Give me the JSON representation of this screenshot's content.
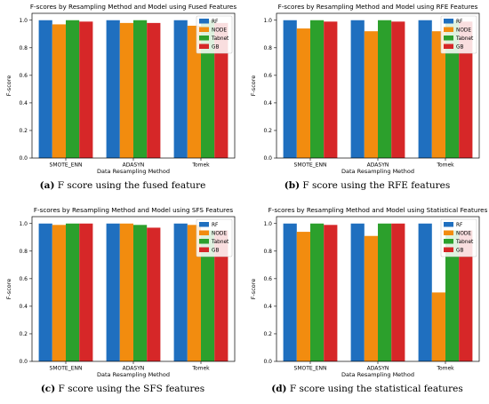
{
  "colors": {
    "RF": "#1f6fbf",
    "NODE": "#f28c0f",
    "Tabnet": "#2ca02c",
    "GB": "#d62728"
  },
  "chart_data": [
    {
      "type": "bar",
      "title": "F-scores by Resampling Method and Model using Fused Features",
      "xlabel": "Data Resampling Method",
      "ylabel": "F-score",
      "categories": [
        "SMOTE_ENN",
        "ADASYN",
        "Tomek"
      ],
      "series": [
        {
          "name": "RF",
          "values": [
            1.0,
            1.0,
            1.0
          ]
        },
        {
          "name": "NODE",
          "values": [
            0.97,
            0.98,
            0.96
          ]
        },
        {
          "name": "Tabnet",
          "values": [
            1.0,
            1.0,
            1.0
          ]
        },
        {
          "name": "GB",
          "values": [
            0.99,
            0.98,
            0.98
          ]
        }
      ],
      "ylim": [
        0,
        1.05
      ],
      "yticks": [
        "0.0",
        "0.2",
        "0.4",
        "0.6",
        "0.8",
        "1.0"
      ],
      "legend": "top-right",
      "caption_label": "(a)",
      "caption_text": "F score using the fused feature"
    },
    {
      "type": "bar",
      "title": "F-scores by Resampling Method and Model using RFE Features",
      "xlabel": "Data Resampling Method",
      "ylabel": "F-score",
      "categories": [
        "SMOTE_ENN",
        "ADASYN",
        "Tomek"
      ],
      "series": [
        {
          "name": "RF",
          "values": [
            1.0,
            1.0,
            1.0
          ]
        },
        {
          "name": "NODE",
          "values": [
            0.94,
            0.92,
            0.92
          ]
        },
        {
          "name": "Tabnet",
          "values": [
            1.0,
            1.0,
            1.0
          ]
        },
        {
          "name": "GB",
          "values": [
            0.99,
            0.99,
            0.99
          ]
        }
      ],
      "ylim": [
        0,
        1.05
      ],
      "yticks": [
        "0.0",
        "0.2",
        "0.4",
        "0.6",
        "0.8",
        "1.0"
      ],
      "legend": "top-right",
      "caption_label": "(b)",
      "caption_text": "F score using the RFE features"
    },
    {
      "type": "bar",
      "title": "F-scores by Resampling Method and Model using SFS Features",
      "xlabel": "Data Resampling Method",
      "ylabel": "F-score",
      "categories": [
        "SMOTE_ENN",
        "ADASYN",
        "Tomek"
      ],
      "series": [
        {
          "name": "RF",
          "values": [
            1.0,
            1.0,
            1.0
          ]
        },
        {
          "name": "NODE",
          "values": [
            0.99,
            1.0,
            0.99
          ]
        },
        {
          "name": "Tabnet",
          "values": [
            1.0,
            0.99,
            0.95
          ]
        },
        {
          "name": "GB",
          "values": [
            1.0,
            0.97,
            0.95
          ]
        }
      ],
      "ylim": [
        0,
        1.05
      ],
      "yticks": [
        "0.0",
        "0.2",
        "0.4",
        "0.6",
        "0.8",
        "1.0"
      ],
      "legend": "top-right",
      "caption_label": "(c)",
      "caption_text": "F score using the SFS features"
    },
    {
      "type": "bar",
      "title": "F-scores by Resampling Method and Model using Statistical Features",
      "xlabel": "Data Resampling Method",
      "ylabel": "F-score",
      "categories": [
        "SMOTE_ENN",
        "ADASYN",
        "Tomek"
      ],
      "series": [
        {
          "name": "RF",
          "values": [
            1.0,
            1.0,
            1.0
          ]
        },
        {
          "name": "NODE",
          "values": [
            0.94,
            0.91,
            0.5
          ]
        },
        {
          "name": "Tabnet",
          "values": [
            1.0,
            1.0,
            0.95
          ]
        },
        {
          "name": "GB",
          "values": [
            0.99,
            1.0,
            0.95
          ]
        }
      ],
      "ylim": [
        0,
        1.05
      ],
      "yticks": [
        "0.0",
        "0.2",
        "0.4",
        "0.6",
        "0.8",
        "1.0"
      ],
      "legend": "top-right",
      "caption_label": "(d)",
      "caption_text": "F score using the statistical features"
    }
  ]
}
